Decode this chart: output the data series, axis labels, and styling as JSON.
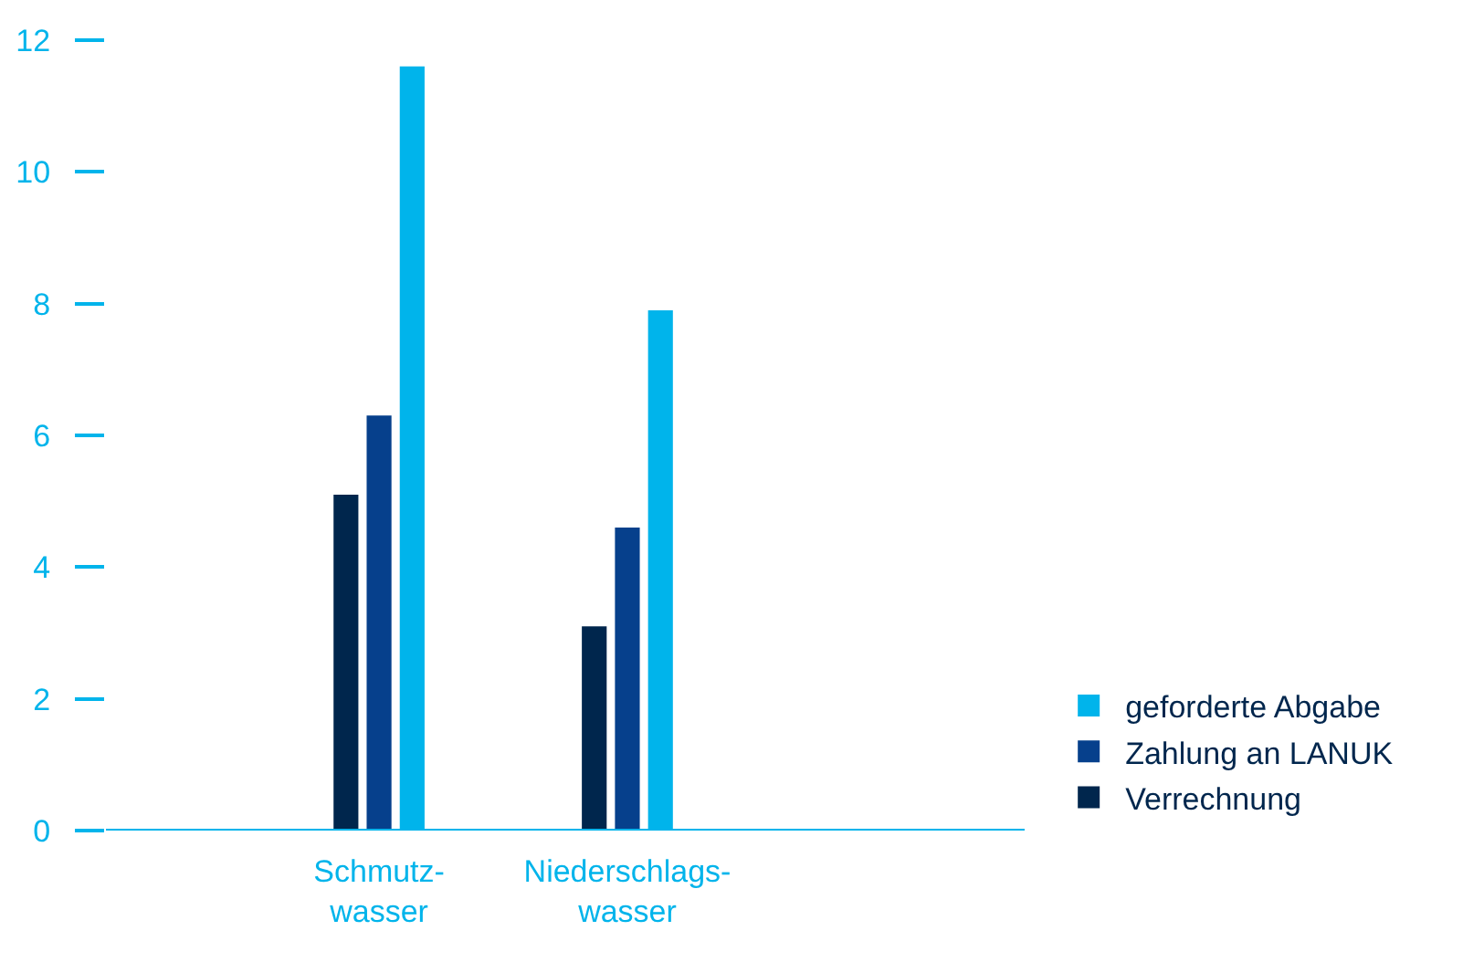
{
  "chart_data": {
    "type": "bar",
    "categories": [
      "Schmutz-wasser",
      "Niederschlags-wasser"
    ],
    "series": [
      {
        "name": "Verrechnung",
        "color": "#00264d",
        "values": [
          5.1,
          3.1
        ]
      },
      {
        "name": "Zahlung an LANUK",
        "color": "#06408c",
        "values": [
          6.3,
          4.6
        ]
      },
      {
        "name": "geforderte Abgabe",
        "color": "#00b4eb",
        "values": [
          11.6,
          7.9
        ]
      }
    ],
    "ylim": [
      0,
      12
    ],
    "yticks": [
      0,
      2,
      4,
      6,
      8,
      10,
      12
    ],
    "grid": false,
    "legend": "bottom right"
  }
}
